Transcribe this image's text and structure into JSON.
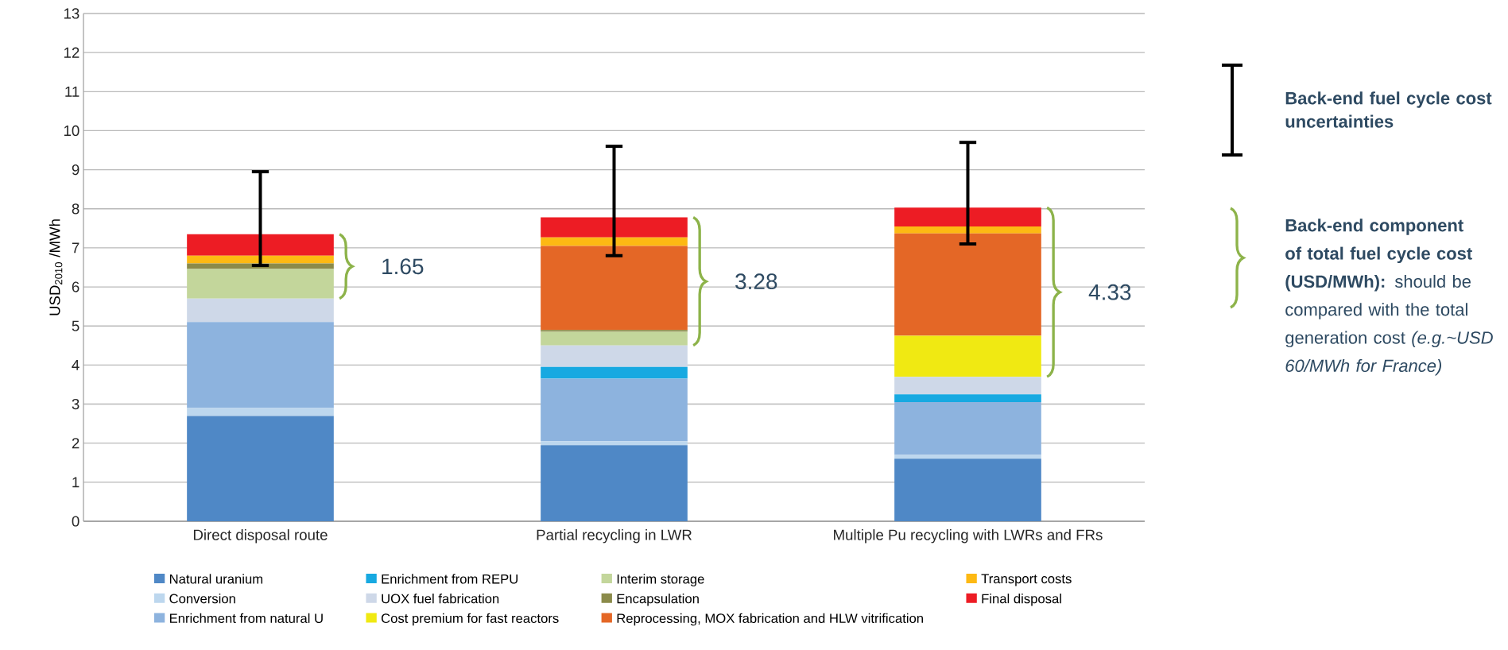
{
  "chart_data": {
    "type": "bar",
    "stacked": true,
    "ylabel": "USD$_{2010}$ /MWh",
    "categories": [
      "Direct disposal route",
      "Partial recycling in LWR",
      "Multiple Pu recycling with LWRs and FRs"
    ],
    "series": [
      {
        "name": "Natural uranium",
        "color": "#4f88c6",
        "values": [
          2.7,
          1.95,
          1.6
        ]
      },
      {
        "name": "Conversion",
        "color": "#bdd7ee",
        "values": [
          0.2,
          0.1,
          0.1
        ]
      },
      {
        "name": "Enrichment from natural U",
        "color": "#8db3de",
        "values": [
          2.2,
          1.6,
          1.35
        ]
      },
      {
        "name": "Enrichment from REPU",
        "color": "#17a9e1",
        "values": [
          null,
          0.3,
          0.2
        ]
      },
      {
        "name": "UOX fuel fabrication",
        "color": "#ced8e8",
        "values": [
          0.6,
          0.55,
          0.45
        ]
      },
      {
        "name": "Cost premium for fast reactors",
        "color": "#f0e912",
        "values": [
          null,
          null,
          1.05
        ]
      },
      {
        "name": "Interim storage",
        "color": "#c3d69b",
        "values": [
          0.76,
          0.35,
          null
        ]
      },
      {
        "name": "Encapsulation",
        "color": "#8b8b4a",
        "values": [
          0.14,
          0.05,
          null
        ]
      },
      {
        "name": "Reprocessing, MOX fabrication and HLW vitrification",
        "color": "#e46726",
        "values": [
          null,
          2.15,
          2.62
        ]
      },
      {
        "name": "Transport costs",
        "color": "#fdb913",
        "values": [
          0.2,
          0.22,
          0.18
        ]
      },
      {
        "name": "Final disposal",
        "color": "#ed1c24",
        "values": [
          0.55,
          0.51,
          0.48
        ],
        "errors": [
          [
            6.55,
            8.95
          ],
          [
            6.8,
            9.6
          ],
          [
            7.1,
            9.7
          ]
        ]
      }
    ],
    "ylim": [
      0,
      13
    ],
    "yticks": [
      0,
      1,
      2,
      3,
      4,
      5,
      6,
      7,
      8,
      9,
      10,
      11,
      12,
      13
    ],
    "grid": "y",
    "legend": "bottom",
    "annotations": [
      "1.65",
      "3.28",
      "4.33",
      "**Back-end fuel cycle cost uncertainties**",
      "**Back-end component of total fuel cycle cost (USD/MWh):** should be compared with the total generation cost *(e.g.~USD 60/MWh for France)*"
    ]
  }
}
